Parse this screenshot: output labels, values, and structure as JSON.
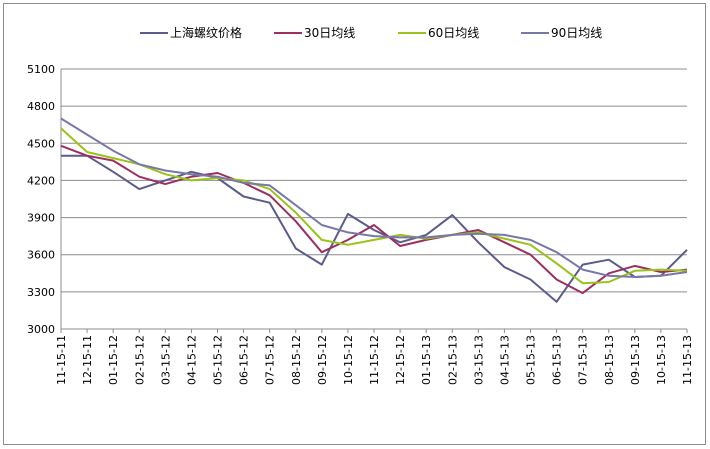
{
  "chart_data": {
    "type": "line",
    "legend_position": "top",
    "grid": "horizontal",
    "ylim": [
      3000,
      5100
    ],
    "yticks": [
      3000,
      3300,
      3600,
      3900,
      4200,
      4500,
      4800,
      5100
    ],
    "x_ticks": [
      "11-15-11",
      "12-15-11",
      "01-15-12",
      "02-15-12",
      "03-15-12",
      "04-15-12",
      "05-15-12",
      "06-15-12",
      "07-15-12",
      "08-15-12",
      "09-15-12",
      "10-15-12",
      "11-15-12",
      "12-15-12",
      "01-15-13",
      "02-15-13",
      "03-15-13",
      "04-15-13",
      "05-15-13",
      "06-15-13",
      "07-15-13",
      "08-15-13",
      "09-15-13",
      "10-15-13",
      "11-15-13"
    ],
    "x": [
      "11-15-11",
      "12-15-11",
      "01-15-12",
      "02-15-12",
      "03-15-12",
      "04-15-12",
      "05-15-12",
      "06-15-12",
      "07-15-12",
      "08-15-12",
      "09-15-12",
      "10-15-12",
      "11-15-12",
      "12-15-12",
      "01-15-13",
      "02-15-13",
      "03-15-13",
      "04-15-13",
      "05-15-13",
      "06-15-13",
      "07-15-13",
      "08-15-13",
      "09-15-13",
      "10-15-13",
      "11-15-13"
    ],
    "series": [
      {
        "name": "上海螺纹价格",
        "color": "#5b5b8c",
        "values": [
          4400,
          4400,
          4270,
          4130,
          4200,
          4270,
          4220,
          4070,
          4020,
          3650,
          3520,
          3930,
          3800,
          3700,
          3760,
          3920,
          3700,
          3500,
          3400,
          3220,
          3520,
          3560,
          3420,
          3430,
          3640
        ]
      },
      {
        "name": "30日均线",
        "color": "#9b2f5e",
        "values": [
          4480,
          4400,
          4360,
          4230,
          4170,
          4230,
          4260,
          4180,
          4080,
          3870,
          3620,
          3720,
          3840,
          3670,
          3720,
          3760,
          3800,
          3700,
          3600,
          3400,
          3290,
          3450,
          3510,
          3460,
          3480
        ]
      },
      {
        "name": "60日均线",
        "color": "#99c31a",
        "values": [
          4620,
          4430,
          4380,
          4330,
          4250,
          4200,
          4220,
          4200,
          4130,
          3940,
          3720,
          3680,
          3720,
          3760,
          3730,
          3760,
          3780,
          3730,
          3680,
          3530,
          3370,
          3380,
          3470,
          3480,
          3470
        ]
      },
      {
        "name": "90日均线",
        "color": "#7777a8",
        "values": [
          4700,
          4570,
          4440,
          4330,
          4280,
          4250,
          4230,
          4180,
          4160,
          4000,
          3840,
          3780,
          3750,
          3740,
          3740,
          3760,
          3770,
          3760,
          3720,
          3620,
          3480,
          3430,
          3420,
          3430,
          3460
        ]
      }
    ]
  }
}
